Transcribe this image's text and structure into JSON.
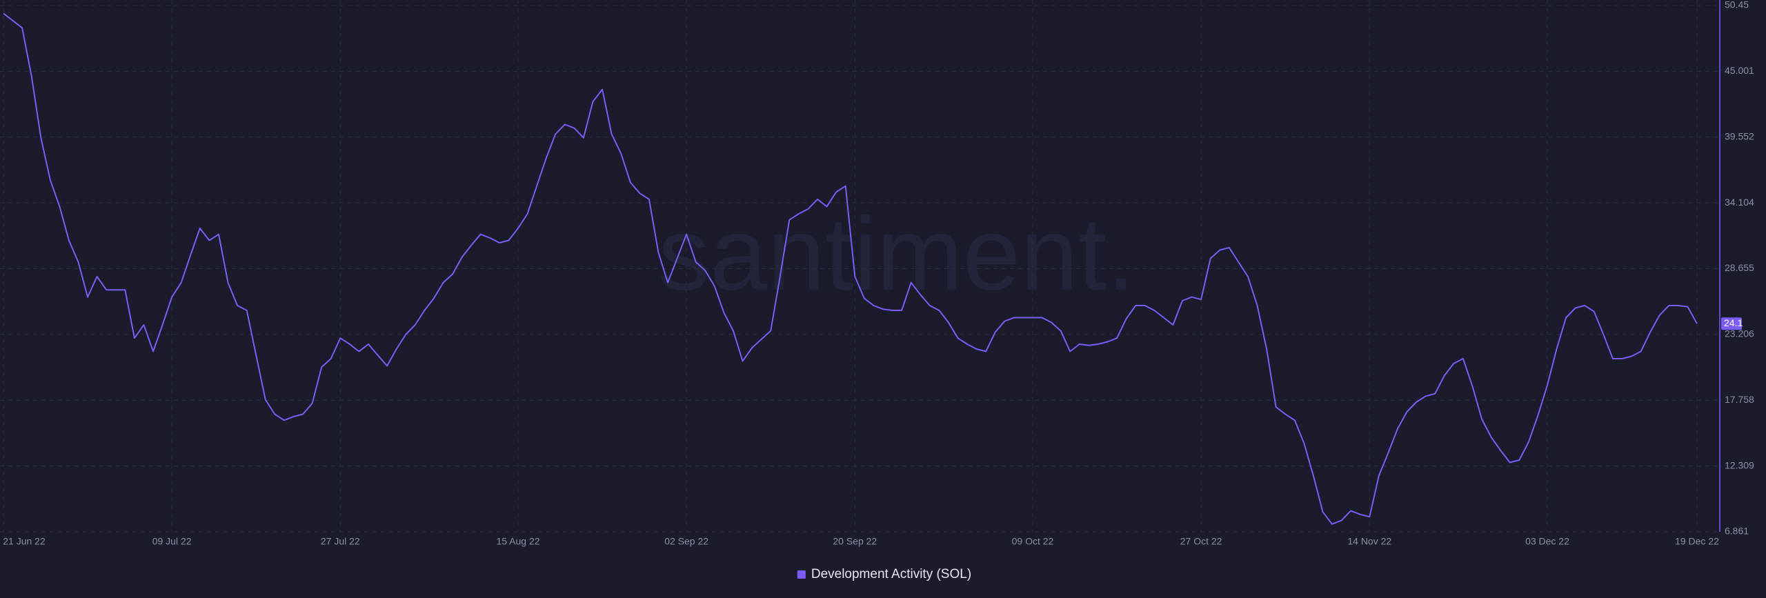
{
  "chart_data": {
    "type": "line",
    "watermark": "santiment.",
    "x": [
      "2022-06-21",
      "2022-06-22",
      "2022-06-23",
      "2022-06-24",
      "2022-06-25",
      "2022-06-26",
      "2022-06-27",
      "2022-06-28",
      "2022-06-29",
      "2022-06-30",
      "2022-07-01",
      "2022-07-02",
      "2022-07-03",
      "2022-07-04",
      "2022-07-05",
      "2022-07-06",
      "2022-07-07",
      "2022-07-08",
      "2022-07-09",
      "2022-07-10",
      "2022-07-11",
      "2022-07-12",
      "2022-07-13",
      "2022-07-14",
      "2022-07-15",
      "2022-07-16",
      "2022-07-17",
      "2022-07-18",
      "2022-07-19",
      "2022-07-20",
      "2022-07-21",
      "2022-07-22",
      "2022-07-23",
      "2022-07-24",
      "2022-07-25",
      "2022-07-26",
      "2022-07-27",
      "2022-07-28",
      "2022-07-29",
      "2022-07-30",
      "2022-07-31",
      "2022-08-01",
      "2022-08-02",
      "2022-08-03",
      "2022-08-04",
      "2022-08-05",
      "2022-08-06",
      "2022-08-07",
      "2022-08-08",
      "2022-08-09",
      "2022-08-10",
      "2022-08-11",
      "2022-08-12",
      "2022-08-13",
      "2022-08-14",
      "2022-08-15",
      "2022-08-16",
      "2022-08-17",
      "2022-08-18",
      "2022-08-19",
      "2022-08-20",
      "2022-08-21",
      "2022-08-22",
      "2022-08-23",
      "2022-08-24",
      "2022-08-25",
      "2022-08-26",
      "2022-08-27",
      "2022-08-28",
      "2022-08-29",
      "2022-08-30",
      "2022-08-31",
      "2022-09-01",
      "2022-09-02",
      "2022-09-03",
      "2022-09-04",
      "2022-09-05",
      "2022-09-06",
      "2022-09-07",
      "2022-09-08",
      "2022-09-09",
      "2022-09-10",
      "2022-09-11",
      "2022-09-12",
      "2022-09-13",
      "2022-09-14",
      "2022-09-15",
      "2022-09-16",
      "2022-09-17",
      "2022-09-18",
      "2022-09-19",
      "2022-09-20",
      "2022-09-21",
      "2022-09-22",
      "2022-09-23",
      "2022-09-24",
      "2022-09-25",
      "2022-09-26",
      "2022-09-27",
      "2022-09-28",
      "2022-09-29",
      "2022-09-30",
      "2022-10-01",
      "2022-10-02",
      "2022-10-03",
      "2022-10-04",
      "2022-10-05",
      "2022-10-06",
      "2022-10-07",
      "2022-10-08",
      "2022-10-09",
      "2022-10-10",
      "2022-10-11",
      "2022-10-12",
      "2022-10-13",
      "2022-10-14",
      "2022-10-15",
      "2022-10-16",
      "2022-10-17",
      "2022-10-18",
      "2022-10-19",
      "2022-10-20",
      "2022-10-21",
      "2022-10-22",
      "2022-10-23",
      "2022-10-24",
      "2022-10-25",
      "2022-10-26",
      "2022-10-27",
      "2022-10-28",
      "2022-10-29",
      "2022-10-30",
      "2022-10-31",
      "2022-11-01",
      "2022-11-02",
      "2022-11-03",
      "2022-11-04",
      "2022-11-05",
      "2022-11-06",
      "2022-11-07",
      "2022-11-08",
      "2022-11-09",
      "2022-11-10",
      "2022-11-11",
      "2022-11-12",
      "2022-11-13",
      "2022-11-14",
      "2022-11-15",
      "2022-11-16",
      "2022-11-17",
      "2022-11-18",
      "2022-11-19",
      "2022-11-20",
      "2022-11-21",
      "2022-11-22",
      "2022-11-23",
      "2022-11-24",
      "2022-11-25",
      "2022-11-26",
      "2022-11-27",
      "2022-11-28",
      "2022-11-29",
      "2022-11-30",
      "2022-12-01",
      "2022-12-02",
      "2022-12-03",
      "2022-12-04",
      "2022-12-05",
      "2022-12-06",
      "2022-12-07",
      "2022-12-08",
      "2022-12-09",
      "2022-12-10",
      "2022-12-11",
      "2022-12-12",
      "2022-12-13",
      "2022-12-14",
      "2022-12-15",
      "2022-12-16",
      "2022-12-17",
      "2022-12-18",
      "2022-12-19"
    ],
    "series": [
      {
        "name": "Development Activity (SOL)",
        "color": "#7b5cf5",
        "values": [
          49.8,
          49.2,
          48.6,
          44.6,
          39.5,
          36,
          33.8,
          31,
          29.2,
          26.3,
          28,
          26.9,
          26.9,
          26.9,
          22.9,
          24,
          21.8,
          24,
          26.3,
          27.5,
          29.8,
          32,
          31,
          31.5,
          27.5,
          25.6,
          25.2,
          21.5,
          17.8,
          16.6,
          16.1,
          16.4,
          16.6,
          17.5,
          20.5,
          21.2,
          22.9,
          22.4,
          21.8,
          22.4,
          21.5,
          20.6,
          22,
          23.2,
          24,
          25.2,
          26.2,
          27.5,
          28.2,
          29.6,
          30.6,
          31.5,
          31.2,
          30.8,
          31,
          32,
          33.2,
          35.5,
          37.8,
          39.8,
          40.6,
          40.3,
          39.5,
          42.5,
          43.5,
          39.8,
          38.2,
          35.8,
          34.9,
          34.4,
          30,
          27.5,
          29.5,
          31.5,
          29.2,
          28.5,
          27.2,
          25,
          23.5,
          21,
          22.1,
          22.8,
          23.5,
          28,
          32.7,
          33.2,
          33.6,
          34.4,
          33.8,
          35,
          35.5,
          28,
          26.2,
          25.6,
          25.3,
          25.2,
          25.2,
          27.5,
          26.5,
          25.6,
          25.2,
          24.2,
          22.9,
          22.4,
          22,
          21.8,
          23.4,
          24.3,
          24.6,
          24.6,
          24.6,
          24.6,
          24.2,
          23.5,
          21.8,
          22.4,
          22.3,
          22.4,
          22.6,
          22.9,
          24.5,
          25.6,
          25.6,
          25.2,
          24.6,
          24,
          26,
          26.3,
          26.1,
          29.5,
          30.2,
          30.4,
          29.2,
          28,
          25.6,
          22,
          17.2,
          16.6,
          16.1,
          14.2,
          11.5,
          8.5,
          7.5,
          7.8,
          8.6,
          8.3,
          8.1,
          11.5,
          13.4,
          15.4,
          16.8,
          17.6,
          18.1,
          18.3,
          19.8,
          20.8,
          21.2,
          18.9,
          16.2,
          14.7,
          13.6,
          12.6,
          12.8,
          14.3,
          16.5,
          19,
          22,
          24.6,
          25.4,
          25.6,
          25.1,
          23.2,
          21.2,
          21.2,
          21.4,
          21.8,
          23.4,
          24.8,
          25.6,
          25.6,
          25.5,
          24.1
        ]
      }
    ],
    "xlim": [
      "2022-06-21",
      "2022-12-19"
    ],
    "xticks": [
      {
        "value": "2022-06-21",
        "label": "21 Jun 22"
      },
      {
        "value": "2022-07-09",
        "label": "09 Jul 22"
      },
      {
        "value": "2022-07-27",
        "label": "27 Jul 22"
      },
      {
        "value": "2022-08-15",
        "label": "15 Aug 22"
      },
      {
        "value": "2022-09-02",
        "label": "02 Sep 22"
      },
      {
        "value": "2022-09-20",
        "label": "20 Sep 22"
      },
      {
        "value": "2022-10-09",
        "label": "09 Oct 22"
      },
      {
        "value": "2022-10-27",
        "label": "27 Oct 22"
      },
      {
        "value": "2022-11-14",
        "label": "14 Nov 22"
      },
      {
        "value": "2022-12-03",
        "label": "03 Dec 22"
      },
      {
        "value": "2022-12-19",
        "label": "19 Dec 22"
      }
    ],
    "ylim": [
      6.861,
      50.45
    ],
    "yticks": [
      6.861,
      12.309,
      17.758,
      23.206,
      28.655,
      34.104,
      39.552,
      45.001,
      50.45
    ],
    "grid": true
  }
}
